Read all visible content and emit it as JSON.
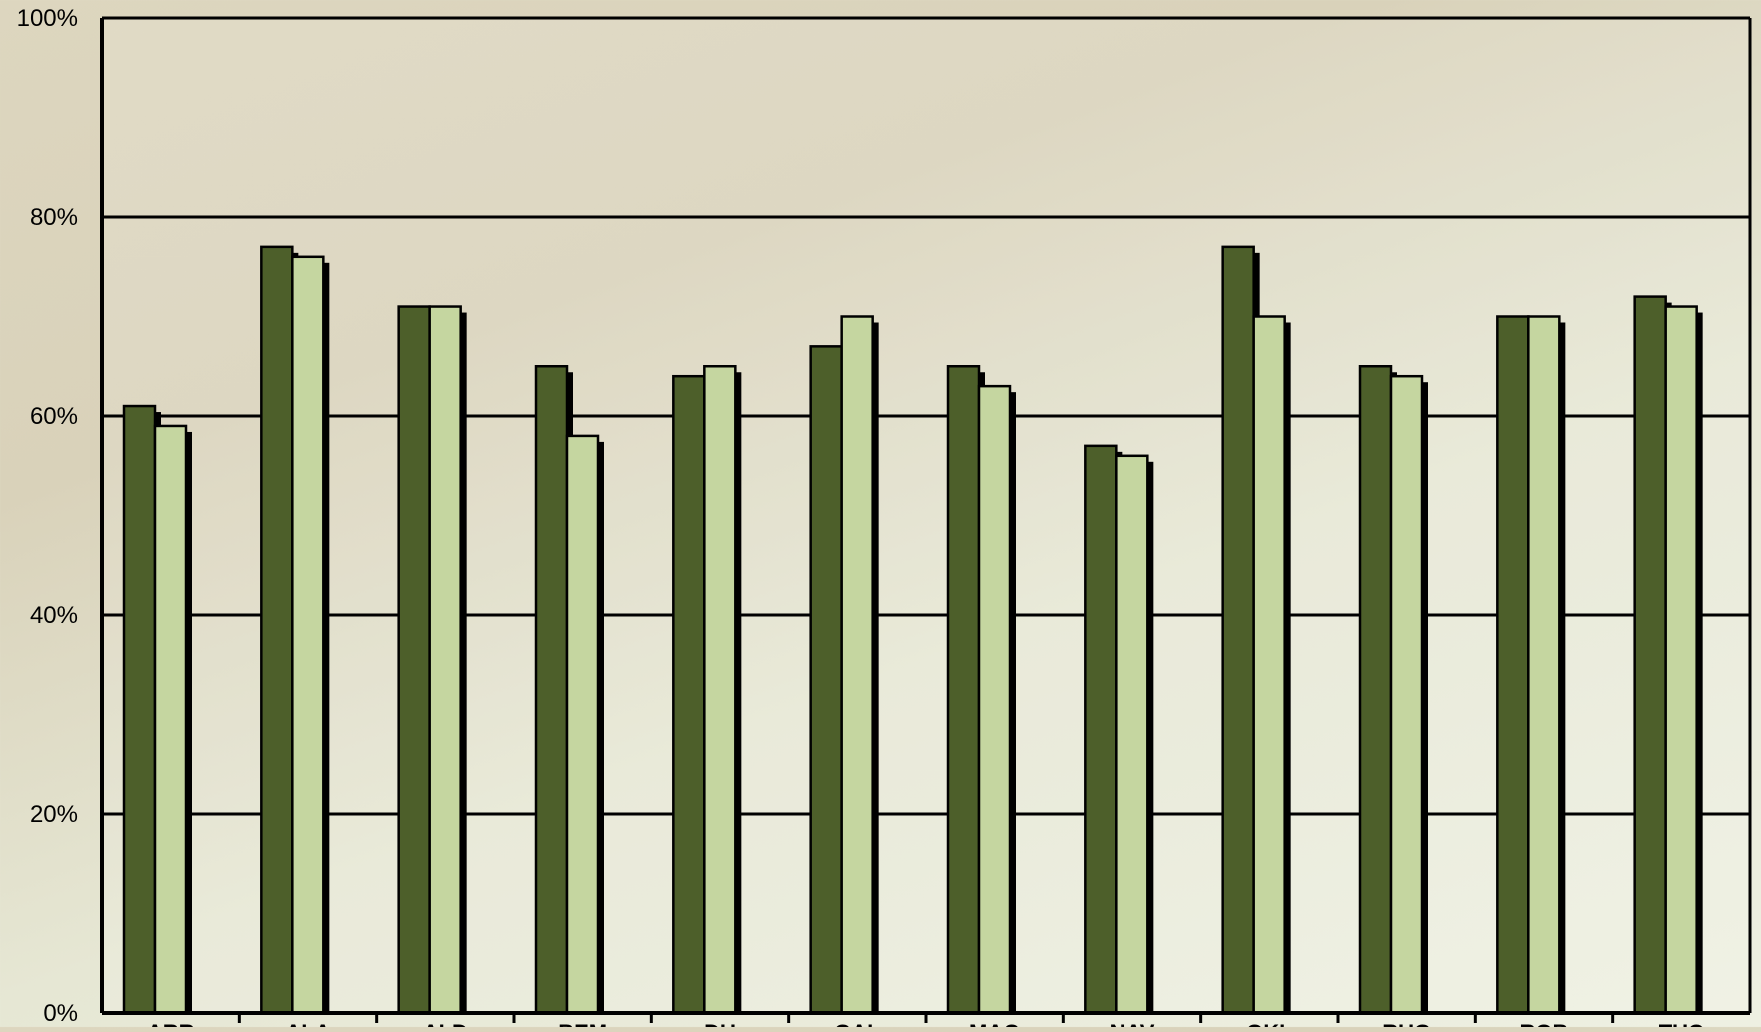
{
  "chart_data": {
    "type": "bar",
    "title": "",
    "xlabel": "",
    "ylabel": "",
    "ylim": [
      0,
      100
    ],
    "y_ticks": [
      "0%",
      "20%",
      "40%",
      "60%",
      "80%",
      "100%"
    ],
    "grid": true,
    "legend": "none",
    "categories": [
      "ARR",
      "ALA",
      "ALD",
      "BEM",
      "DU",
      "GAL",
      "MAQ",
      "NAV",
      "OKL",
      "RUG",
      "ROB",
      "TUC"
    ],
    "series": [
      {
        "color": "#4d5f2a",
        "values": [
          61,
          77,
          71,
          65,
          64,
          67,
          65,
          57,
          77,
          65,
          70,
          72
        ]
      },
      {
        "color": "#c5d6a0",
        "values": [
          59,
          76,
          71,
          58,
          65,
          70,
          63,
          56,
          70,
          64,
          70,
          71
        ]
      }
    ]
  }
}
